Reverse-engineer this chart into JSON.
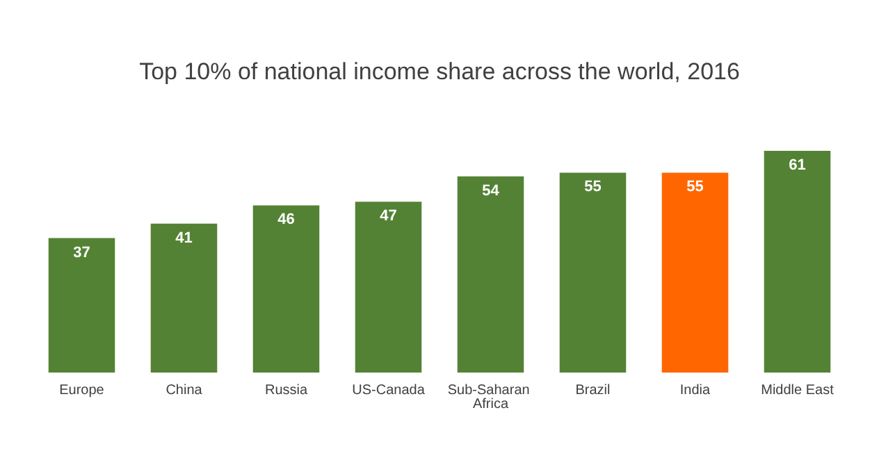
{
  "chart_data": {
    "type": "bar",
    "title": "Top 10% of national income share across the world, 2016",
    "categories": [
      "Europe",
      "China",
      "Russia",
      "US-Canada",
      "Sub-Saharan Africa",
      "Brazil",
      "India",
      "Middle East"
    ],
    "values": [
      37,
      41,
      46,
      47,
      54,
      55,
      55,
      61
    ],
    "colors": [
      "#548235",
      "#548235",
      "#548235",
      "#548235",
      "#548235",
      "#548235",
      "#ff6600",
      "#548235"
    ],
    "data_labels": true
  }
}
